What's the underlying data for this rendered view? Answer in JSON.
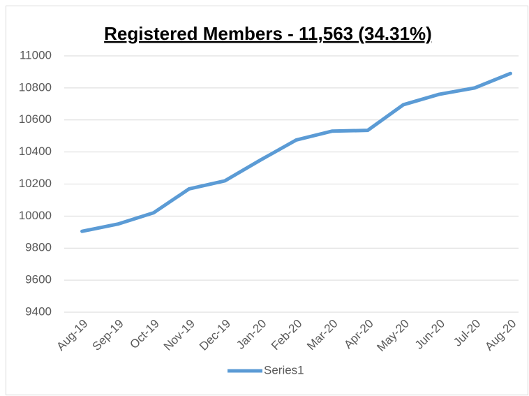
{
  "chart_data": {
    "type": "line",
    "title": "Registered Members - 11,563 (34.31%)",
    "categories": [
      "Aug-19",
      "Sep-19",
      "Oct-19",
      "Nov-19",
      "Dec-19",
      "Jan-20",
      "Feb-20",
      "Mar-20",
      "Apr-20",
      "May-20",
      "Jun-20",
      "Jul-20",
      "Aug-20"
    ],
    "series": [
      {
        "name": "Series1",
        "color": "#5b9bd5",
        "values": [
          9905,
          9950,
          10020,
          10170,
          10220,
          10350,
          10475,
          10530,
          10535,
          10695,
          10760,
          10800,
          10890
        ]
      }
    ],
    "ylim": [
      9400,
      11000
    ],
    "yticks": [
      9400,
      9600,
      9800,
      10000,
      10200,
      10400,
      10600,
      10800,
      11000
    ],
    "grid": true,
    "legend": "bottom"
  }
}
